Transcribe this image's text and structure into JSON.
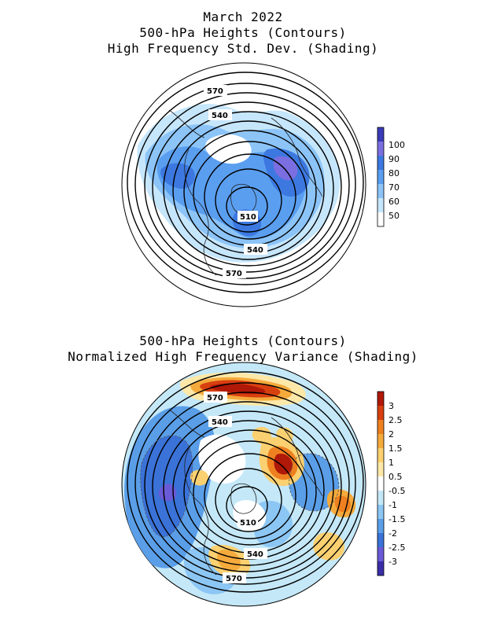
{
  "top": {
    "title_lines": [
      "March 2022",
      "500-hPa Heights (Contours)",
      "High Frequency Std. Dev. (Shading)"
    ],
    "contour_labels": [
      "570",
      "540",
      "510",
      "540",
      "570"
    ],
    "colorbar": {
      "labels": [
        "100",
        "90",
        "80",
        "70",
        "60",
        "50"
      ],
      "colors": [
        "#3b3bb8",
        "#7a6ee0",
        "#3c78e0",
        "#5a9ef0",
        "#8cc4f8",
        "#c6e6fc",
        "#ffffff"
      ]
    }
  },
  "bottom": {
    "title_lines": [
      "500-hPa Heights (Contours)",
      "Normalized High Frequency Variance (Shading)"
    ],
    "contour_labels": [
      "570",
      "540",
      "510",
      "540",
      "570"
    ],
    "colorbar": {
      "labels": [
        "3",
        "2.5",
        "2",
        "1.5",
        "1",
        "0.5",
        "-0.5",
        "-1",
        "-1.5",
        "-2",
        "-2.5",
        "-3"
      ],
      "colors": [
        "#b01808",
        "#d84010",
        "#ee8020",
        "#f5aa3c",
        "#fbd070",
        "#fde8a8",
        "#ffffff",
        "#c4e8f8",
        "#8cc6f4",
        "#5a9ee8",
        "#3a72d8",
        "#6a5ad8",
        "#3a2ea8"
      ]
    }
  }
}
